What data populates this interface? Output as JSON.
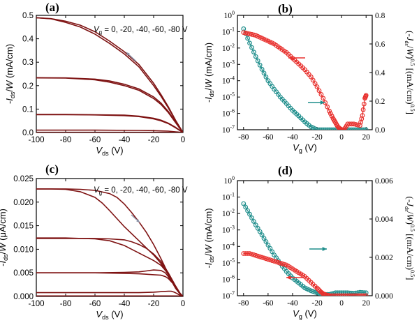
{
  "colors": {
    "dark_red": "#7e1212",
    "red": "#e8312e",
    "teal": "#1f8e8c",
    "arrow_gray": "#8a93a8",
    "arrow_red": "#e8312e",
    "arrow_teal": "#1f8e8c"
  },
  "chart_data": [
    {
      "id": "a",
      "panel_label": "(a)",
      "type": "line",
      "annotation": "V_g = 0, -20, -40, -60, -80 V",
      "annotation_parts": {
        "v": "V",
        "sub": "g",
        "rest": " = 0, -20, -40, -60, -80 V"
      },
      "xlabel_parts": {
        "v": "V",
        "sub": "ds",
        "rest": " (V)"
      },
      "ylabel_parts": {
        "pre": "-",
        "i": "I",
        "sub": "ds",
        "mid": "/",
        "w": "W",
        "rest": " (mA/cm)"
      },
      "xlim": [
        -100,
        0
      ],
      "ylim": [
        0,
        0.5
      ],
      "xticks": [
        -100,
        -80,
        -60,
        -40,
        -20,
        0
      ],
      "yticks": [
        0.0,
        0.1,
        0.2,
        0.3,
        0.4,
        0.5
      ],
      "xtick_labels": [
        "-100",
        "-80",
        "-60",
        "-40",
        "-20",
        "0"
      ],
      "ytick_labels": [
        "0.0",
        "0.1",
        "0.2",
        "0.3",
        "0.4",
        "0.5"
      ],
      "series": [
        {
          "x": [
            -100,
            -90,
            -80,
            -70,
            -60,
            -50,
            -40,
            -30,
            -20,
            -15,
            -10,
            -5,
            -2,
            0
          ],
          "values": [
            0.49,
            0.485,
            0.47,
            0.45,
            0.42,
            0.38,
            0.335,
            0.28,
            0.2,
            0.155,
            0.105,
            0.05,
            0.02,
            0
          ]
        },
        {
          "x": [
            -100,
            -90,
            -80,
            -70,
            -60,
            -50,
            -40,
            -30,
            -20,
            -15,
            -10,
            -5,
            -2,
            0
          ],
          "values": [
            0.49,
            0.486,
            0.475,
            0.458,
            0.43,
            0.39,
            0.345,
            0.29,
            0.21,
            0.162,
            0.11,
            0.052,
            0.021,
            0
          ]
        },
        {
          "x": [
            -100,
            -80,
            -60,
            -50,
            -40,
            -30,
            -20,
            -15,
            -10,
            -5,
            -2,
            0
          ],
          "values": [
            0.233,
            0.232,
            0.225,
            0.215,
            0.2,
            0.18,
            0.145,
            0.12,
            0.085,
            0.042,
            0.016,
            0
          ]
        },
        {
          "x": [
            -100,
            -80,
            -60,
            -50,
            -40,
            -30,
            -20,
            -15,
            -10,
            -5,
            -2,
            0
          ],
          "values": [
            0.234,
            0.233,
            0.228,
            0.22,
            0.206,
            0.186,
            0.152,
            0.126,
            0.09,
            0.045,
            0.018,
            0
          ]
        },
        {
          "x": [
            -100,
            -80,
            -60,
            -40,
            -30,
            -20,
            -15,
            -10,
            -5,
            -2,
            0
          ],
          "values": [
            0.076,
            0.076,
            0.075,
            0.072,
            0.068,
            0.058,
            0.05,
            0.038,
            0.02,
            0.008,
            0
          ]
        },
        {
          "x": [
            -100,
            -80,
            -60,
            -40,
            -30,
            -20,
            -15,
            -10,
            -5,
            -2,
            0
          ],
          "values": [
            0.077,
            0.077,
            0.076,
            0.074,
            0.07,
            0.061,
            0.053,
            0.04,
            0.022,
            0.009,
            0
          ]
        },
        {
          "x": [
            -100,
            -60,
            -30,
            -20,
            -10,
            -5,
            0
          ],
          "values": [
            0.01,
            0.01,
            0.009,
            0.008,
            0.006,
            0.003,
            0
          ]
        },
        {
          "x": [
            -100,
            -60,
            -30,
            -10,
            0
          ],
          "values": [
            0.001,
            0.001,
            0.001,
            0.001,
            0
          ]
        }
      ]
    },
    {
      "id": "b",
      "panel_label": "(b)",
      "type": "scatter",
      "xlabel_parts": {
        "v": "V",
        "sub": "g",
        "rest": " (V)"
      },
      "ylabel_parts": {
        "pre": "-",
        "i": "I",
        "sub": "ds",
        "mid": "/",
        "w": "W",
        "rest": " (mA/cm)"
      },
      "y2label": "(-J_ds/W)^0.5 [(mA/cm)^0.5]",
      "y2label_parts": {
        "open": "(-",
        "i": "J",
        "sub": "ds",
        "mid": "/",
        "w": "W",
        "close": ")",
        "sup1": "0.5",
        "rest": " [(mA/cm)",
        "sup2": "0.5",
        "end": "]"
      },
      "xlim": [
        -85,
        25
      ],
      "ylim_log10": [
        -7,
        0
      ],
      "y2lim": [
        0,
        0.8
      ],
      "xticks": [
        -80,
        -60,
        -40,
        -20,
        0,
        20
      ],
      "xtick_labels": [
        "-80",
        "-60",
        "-40",
        "-20",
        "0",
        "20"
      ],
      "yticks_log10": [
        -7,
        -6,
        -5,
        -4,
        -3,
        -2,
        -1,
        0
      ],
      "ytick_labels": [
        "10^-7",
        "10^-6",
        "10^-5",
        "10^-4",
        "10^-3",
        "10^-2",
        "10^-1",
        "10^0"
      ],
      "ytick_exps": [
        "-7",
        "-6",
        "-5",
        "-4",
        "-3",
        "-2",
        "-1",
        "0"
      ],
      "y2ticks": [
        0.0,
        0.2,
        0.4,
        0.6,
        0.8
      ],
      "y2tick_labels": [
        "0.0",
        "0.2",
        "0.4",
        "0.6",
        "0.8"
      ],
      "series": [
        {
          "axis": "left",
          "log": true,
          "x": [
            -80,
            -75,
            -70,
            -65,
            -60,
            -55,
            -50,
            -45,
            -40,
            -35,
            -30,
            -25,
            -20,
            -15,
            -10,
            -5,
            0,
            5,
            10,
            15,
            20
          ],
          "values": [
            0.15,
            0.02,
            0.003,
            0.0005,
            0.0001,
            3e-05,
            1e-05,
            4e-06,
            1.5e-06,
            7e-07,
            3e-07,
            1.5e-07,
            1e-07,
            1e-07,
            1e-07,
            1e-07,
            1e-07,
            1e-07,
            1e-07,
            1e-07,
            1e-07
          ]
        },
        {
          "axis": "right",
          "x": [
            -80,
            -75,
            -70,
            -65,
            -60,
            -55,
            -50,
            -45,
            -40,
            -35,
            -30,
            -25,
            -20,
            -15,
            -10,
            -7,
            -5,
            -3,
            -1,
            0,
            2,
            5,
            10,
            15,
            17,
            19,
            20
          ],
          "values": [
            0.68,
            0.67,
            0.66,
            0.64,
            0.62,
            0.6,
            0.57,
            0.54,
            0.5,
            0.46,
            0.42,
            0.37,
            0.3,
            0.22,
            0.13,
            0.08,
            0.05,
            0.02,
            0.005,
            0,
            0,
            0.04,
            0.04,
            0.03,
            0.1,
            0.22,
            0.24
          ]
        }
      ]
    },
    {
      "id": "c",
      "panel_label": "(c)",
      "type": "line",
      "annotation": "V_g = 0, -20, -40, -60, -80 V",
      "annotation_parts": {
        "v": "V",
        "sub": "g",
        "rest": " = 0, -20, -40, -60, -80 V"
      },
      "xlabel_parts": {
        "v": "V",
        "sub": "ds",
        "rest": " (V)"
      },
      "ylabel_parts": {
        "pre": "-",
        "i": "I",
        "sub": "ds",
        "mid": "/",
        "w": "W",
        "rest": " (μA/cm)"
      },
      "xlim": [
        -100,
        0
      ],
      "ylim": [
        0,
        0.025
      ],
      "xticks": [
        -100,
        -80,
        -60,
        -40,
        -20,
        0
      ],
      "yticks": [
        0.0,
        0.005,
        0.01,
        0.015,
        0.02,
        0.025
      ],
      "xtick_labels": [
        "-100",
        "-80",
        "-60",
        "-40",
        "-20",
        "0"
      ],
      "ytick_labels": [
        "0.000",
        "0.005",
        "0.010",
        "0.015",
        "0.020",
        "0.025"
      ],
      "series": [
        {
          "x": [
            -100,
            -90,
            -80,
            -70,
            -60,
            -50,
            -45,
            -40,
            -35,
            -30,
            -25,
            -20,
            -15,
            -10,
            -5,
            -2,
            0
          ],
          "values": [
            0.0228,
            0.0228,
            0.0228,
            0.0227,
            0.0225,
            0.0218,
            0.021,
            0.0196,
            0.0178,
            0.0158,
            0.0136,
            0.011,
            0.008,
            0.0048,
            0.002,
            0.0006,
            0
          ]
        },
        {
          "x": [
            -100,
            -90,
            -80,
            -70,
            -60,
            -55,
            -50,
            -45,
            -40,
            -35,
            -30,
            -25,
            -20,
            -15,
            -10,
            -5,
            -2,
            0
          ],
          "values": [
            0.0228,
            0.0228,
            0.0227,
            0.0222,
            0.021,
            0.0198,
            0.0182,
            0.0165,
            0.0148,
            0.0133,
            0.0118,
            0.0103,
            0.0088,
            0.007,
            0.0046,
            0.0018,
            0.0005,
            0
          ]
        },
        {
          "x": [
            -100,
            -80,
            -60,
            -50,
            -40,
            -35,
            -30,
            -25,
            -20,
            -15,
            -10,
            -5,
            -2,
            0
          ],
          "values": [
            0.0123,
            0.0123,
            0.0123,
            0.0122,
            0.012,
            0.0116,
            0.011,
            0.0102,
            0.009,
            0.0074,
            0.005,
            0.0022,
            0.0007,
            0
          ]
        },
        {
          "x": [
            -100,
            -80,
            -60,
            -50,
            -40,
            -35,
            -30,
            -25,
            -20,
            -15,
            -10,
            -5,
            -2,
            0
          ],
          "values": [
            0.0124,
            0.0124,
            0.0122,
            0.0118,
            0.0108,
            0.01,
            0.0092,
            0.0084,
            0.0076,
            0.0066,
            0.0048,
            0.002,
            0.0006,
            0
          ]
        },
        {
          "x": [
            -100,
            -80,
            -60,
            -40,
            -30,
            -25,
            -20,
            -15,
            -12,
            -10,
            -7,
            -5,
            -2,
            0
          ],
          "values": [
            0.005,
            0.005,
            0.005,
            0.0051,
            0.0052,
            0.0054,
            0.0056,
            0.0055,
            0.005,
            0.0042,
            0.003,
            0.0018,
            0.0006,
            0
          ]
        },
        {
          "x": [
            -100,
            -80,
            -60,
            -40,
            -30,
            -25,
            -20,
            -15,
            -12,
            -10,
            -7,
            -5,
            -2,
            0
          ],
          "values": [
            0.005,
            0.005,
            0.005,
            0.0049,
            0.0048,
            0.0047,
            0.0046,
            0.0045,
            0.0042,
            0.0038,
            0.0028,
            0.0017,
            0.0005,
            0
          ]
        },
        {
          "x": [
            -100,
            -60,
            -30,
            -20,
            -15,
            -10,
            -8,
            -6,
            -4,
            -2,
            0
          ],
          "values": [
            0.0008,
            0.0008,
            0.0008,
            0.0009,
            0.001,
            0.0011,
            0.0011,
            0.0009,
            0.0006,
            0.0002,
            0
          ]
        },
        {
          "x": [
            -100,
            -60,
            -30,
            -20,
            -15,
            -10,
            -8,
            -6,
            -4,
            -2,
            0
          ],
          "values": [
            0.0001,
            0.0001,
            0.0001,
            0.0001,
            0.0001,
            0.0001,
            0.0001,
            0.0001,
            0.0001,
            5e-05,
            0
          ]
        }
      ]
    },
    {
      "id": "d",
      "panel_label": "(d)",
      "type": "scatter",
      "xlabel_parts": {
        "v": "V",
        "sub": "g",
        "rest": " (V)"
      },
      "ylabel_parts": {
        "pre": "-",
        "i": "I",
        "sub": "ds",
        "mid": "/",
        "w": "W",
        "rest": " (mA/cm)"
      },
      "y2label": "(-J_ds/W)^0.5 [(mA/cm)^0.5]",
      "y2label_parts": {
        "open": "(-",
        "i": "J",
        "sub": "ds",
        "mid": "/",
        "w": "W",
        "close": ")",
        "sup1": "0.5",
        "rest": " [(mA/cm)",
        "sup2": "0.5",
        "end": "]"
      },
      "xlim": [
        -85,
        25
      ],
      "ylim_log10": [
        -7,
        0
      ],
      "y2lim": [
        0,
        0.006
      ],
      "xticks": [
        -80,
        -60,
        -40,
        -20,
        0,
        20
      ],
      "xtick_labels": [
        "-80",
        "-60",
        "-40",
        "-20",
        "0",
        "20"
      ],
      "yticks_log10": [
        -7,
        -6,
        -5,
        -4,
        -3,
        -2,
        -1,
        0
      ],
      "ytick_labels": [
        "10^-7",
        "10^-6",
        "10^-5",
        "10^-4",
        "10^-3",
        "10^-2",
        "10^-1",
        "10^0"
      ],
      "ytick_exps": [
        "-7",
        "-6",
        "-5",
        "-4",
        "-3",
        "-2",
        "-1",
        "0"
      ],
      "y2ticks": [
        0.0,
        0.002,
        0.004,
        0.006
      ],
      "y2tick_labels": [
        "0.000",
        "0.002",
        "0.004",
        "0.006"
      ],
      "series": [
        {
          "axis": "left",
          "log": true,
          "x": [
            -80,
            -75,
            -70,
            -65,
            -60,
            -55,
            -50,
            -45,
            -40,
            -35,
            -30,
            -25,
            -20,
            -15,
            -10,
            -5,
            0,
            5,
            10,
            15,
            20
          ],
          "values": [
            0.04,
            0.009,
            0.002,
            0.0005,
            0.00012,
            3e-05,
            9e-06,
            3e-06,
            1.2e-06,
            6e-07,
            3e-07,
            2e-07,
            1.5e-07,
            1.2e-07,
            1.2e-07,
            1.5e-07,
            1.5e-07,
            1.5e-07,
            1.4e-07,
            1.6e-07,
            1.5e-07
          ]
        },
        {
          "axis": "right",
          "x": [
            -80,
            -75,
            -70,
            -65,
            -60,
            -55,
            -50,
            -45,
            -40,
            -35,
            -30,
            -25,
            -20,
            -17,
            -15,
            -12,
            -10,
            -5,
            0,
            5,
            10,
            15,
            20
          ],
          "values": [
            0.0022,
            0.0022,
            0.0021,
            0.002,
            0.0019,
            0.0018,
            0.0017,
            0.0016,
            0.0014,
            0.0012,
            0.001,
            0.0007,
            0.0004,
            0.0002,
            0.0001,
            3e-05,
            0,
            0,
            0,
            0,
            0,
            0,
            0
          ]
        }
      ]
    }
  ]
}
